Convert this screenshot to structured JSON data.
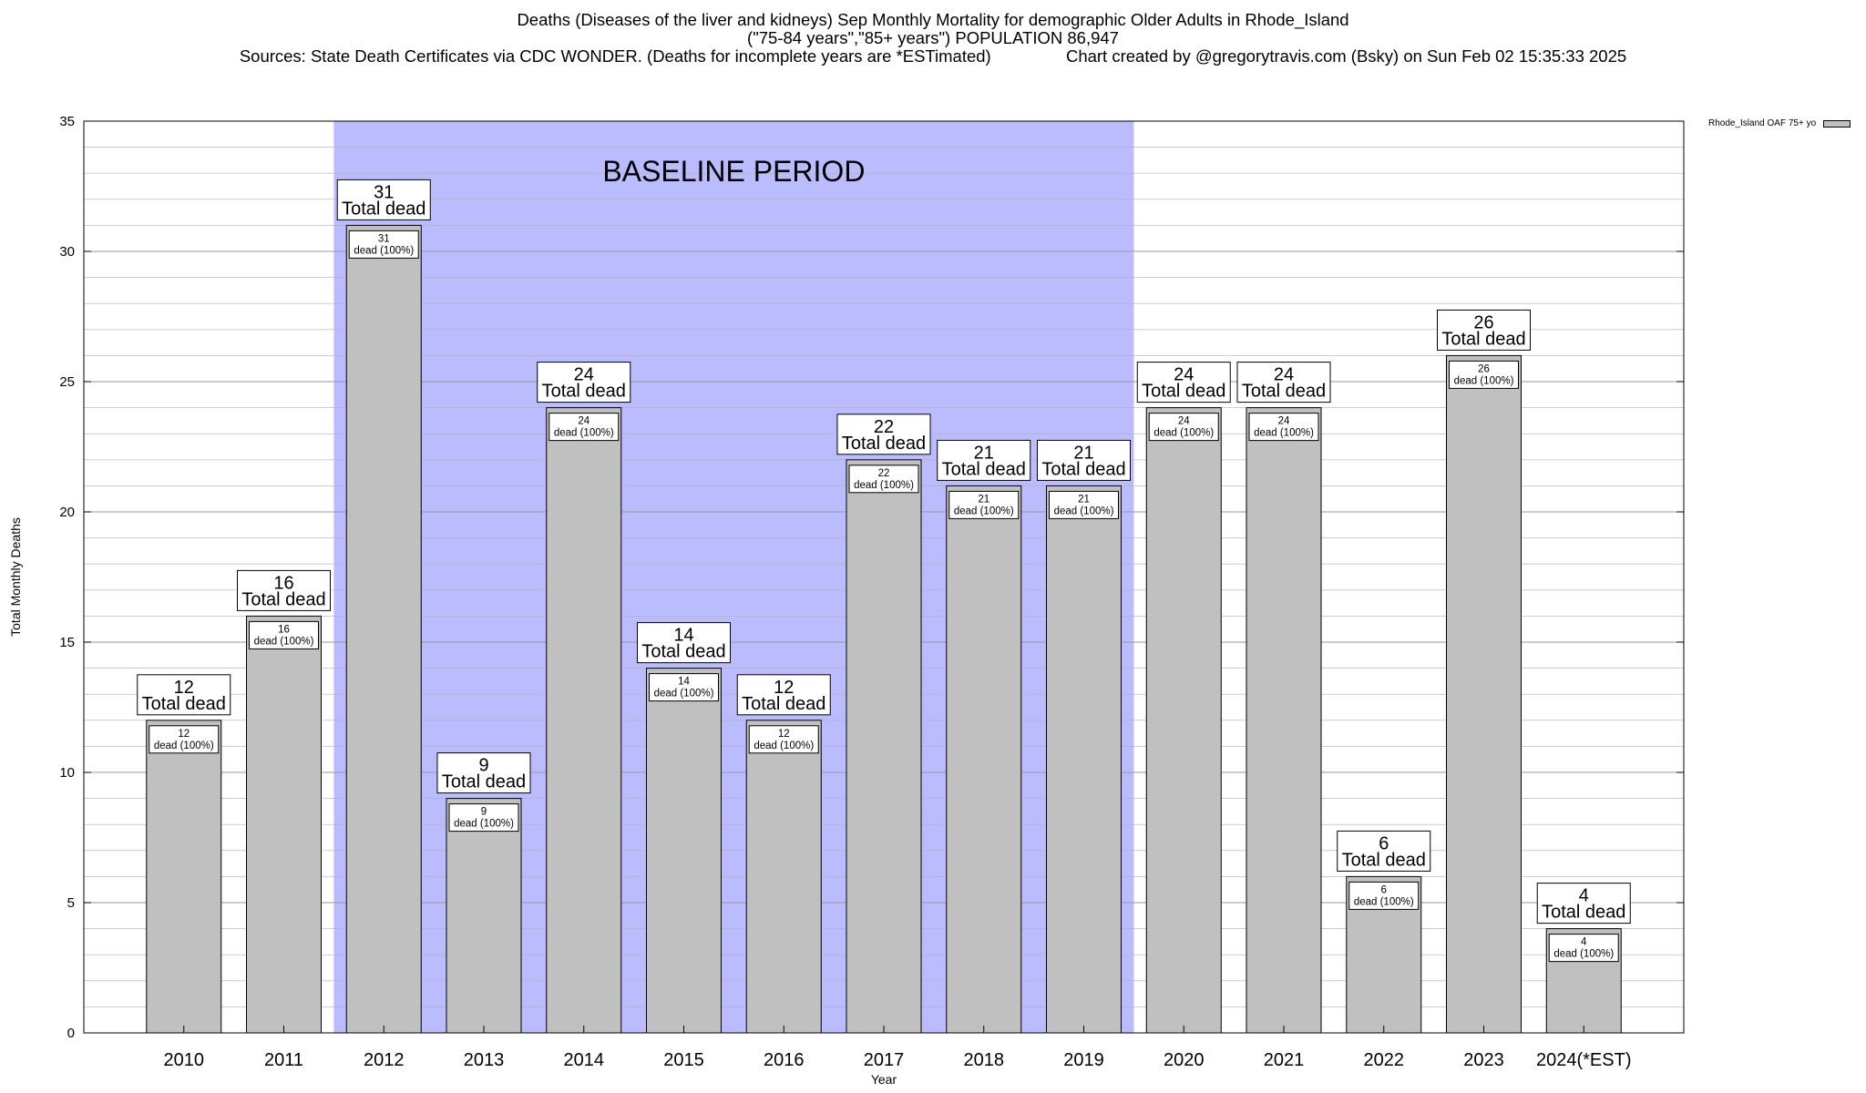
{
  "title_lines": [
    "Deaths (Diseases of the liver and kidneys) Sep Monthly Mortality for demographic Older Adults in Rhode_Island",
    "(\"75-84 years\",\"85+ years\") POPULATION 86,947",
    "Sources: State Death Certificates via CDC WONDER. (Deaths for incomplete years are *ESTimated)                Chart created by @gregorytravis.com (Bsky) on Sun Feb 02 15:35:33 2025"
  ],
  "legend_label": "Rhode_Island OAF 75+ yo",
  "colors": {
    "bar": "#c0c0c0",
    "baseline": "#bbbbff",
    "grid": "#b0b0b0"
  },
  "chart_data": {
    "type": "bar",
    "xlabel": "Year",
    "ylabel": "Total Monthly Deaths",
    "ylim": [
      0,
      35
    ],
    "yticks": [
      0,
      5,
      10,
      15,
      20,
      25,
      30,
      35
    ],
    "categories": [
      "2010",
      "2011",
      "2012",
      "2013",
      "2014",
      "2015",
      "2016",
      "2017",
      "2018",
      "2019",
      "2020",
      "2021",
      "2022",
      "2023",
      "2024(*EST)"
    ],
    "values": [
      12,
      16,
      31,
      9,
      24,
      14,
      12,
      22,
      21,
      21,
      24,
      24,
      6,
      26,
      4
    ],
    "top_label_suffix": "Total dead",
    "inner_label_suffix": "dead (100%)",
    "baseline": {
      "label": "BASELINE PERIOD",
      "from": "2012",
      "to": "2019"
    },
    "legend_placement": "top-right",
    "grid": true
  }
}
